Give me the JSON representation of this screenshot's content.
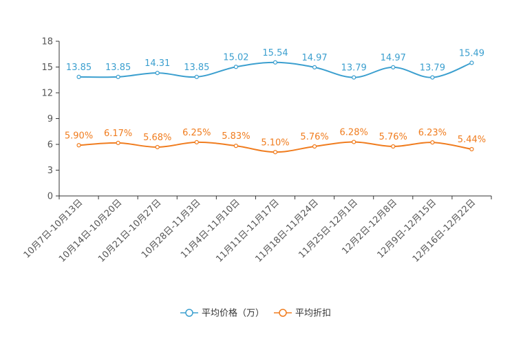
{
  "chart_data": {
    "type": "line",
    "title": "",
    "xlabel": "",
    "ylabel": "",
    "ylim": [
      0,
      18
    ],
    "yticks": [
      0,
      3,
      6,
      9,
      12,
      15,
      18
    ],
    "categories": [
      "10月7日-10月13日",
      "10月14日-10月20日",
      "10月21日-10月27日",
      "10月28日-11月3日",
      "11月4日-11月10日",
      "11月11日-11月17日",
      "11月18日-11月24日",
      "11月25日-12月1日",
      "12月2日-12月8日",
      "12月9日-12月15日",
      "12月16日-12月22日"
    ],
    "series": [
      {
        "name": "平均价格（万）",
        "color": "#3b9fcf",
        "values": [
          13.85,
          13.85,
          14.31,
          13.85,
          15.02,
          15.54,
          14.97,
          13.79,
          14.97,
          13.79,
          15.49
        ],
        "labels": [
          "13.85",
          "13.85",
          "14.31",
          "13.85",
          "15.02",
          "15.54",
          "14.97",
          "13.79",
          "14.97",
          "13.79",
          "15.49"
        ]
      },
      {
        "name": "平均折扣",
        "color": "#f07c1e",
        "values": [
          5.9,
          6.17,
          5.68,
          6.25,
          5.83,
          5.1,
          5.76,
          6.28,
          5.76,
          6.23,
          5.44
        ],
        "labels": [
          "5.90%",
          "6.17%",
          "5.68%",
          "6.25%",
          "5.83%",
          "5.10%",
          "5.76%",
          "6.28%",
          "5.76%",
          "6.23%",
          "5.44%"
        ]
      }
    ],
    "legend_position": "bottom-center",
    "grid": false
  }
}
